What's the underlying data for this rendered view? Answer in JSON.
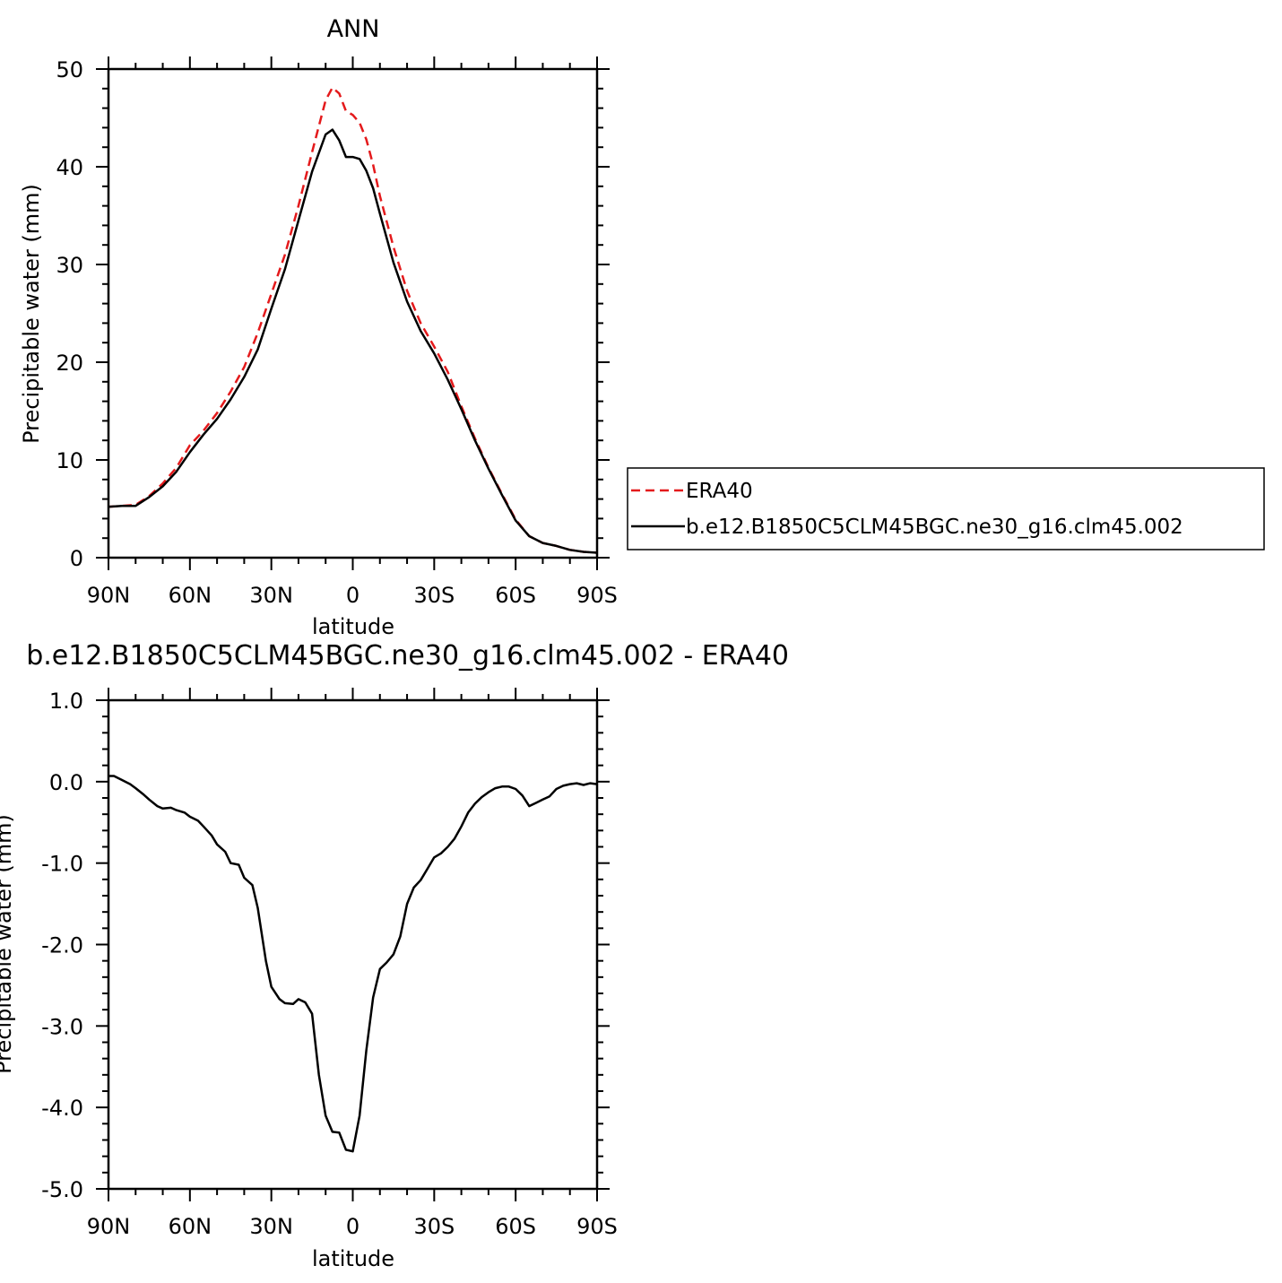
{
  "chart_data": [
    {
      "type": "line",
      "title": "ANN",
      "xlabel": "latitude",
      "ylabel": "Precipitable water (mm)",
      "xlim": [
        -90,
        90
      ],
      "ylim": [
        0,
        50
      ],
      "x_ticks": [
        -90,
        -60,
        -30,
        0,
        30,
        60,
        90
      ],
      "x_tick_labels": [
        "90N",
        "60N",
        "30N",
        "0",
        "30S",
        "60S",
        "90S"
      ],
      "y_ticks": [
        0,
        10,
        20,
        30,
        40,
        50
      ],
      "y_tick_labels": [
        "0",
        "10",
        "20",
        "30",
        "40",
        "50"
      ],
      "legend_position": "right",
      "series": [
        {
          "name": "ERA40",
          "color": "#e41a1c",
          "dash": "dashed",
          "x": [
            -90,
            -85,
            -80,
            -75,
            -70,
            -65,
            -60,
            -55,
            -50,
            -45,
            -40,
            -35,
            -30,
            -25,
            -20,
            -15,
            -10,
            -7.5,
            -5,
            -2.5,
            0,
            2.5,
            5,
            7.5,
            10,
            15,
            20,
            25,
            30,
            35,
            40,
            45,
            50,
            55,
            60,
            65,
            70,
            75,
            80,
            85,
            90
          ],
          "values": [
            5.2,
            5.3,
            5.4,
            6.3,
            7.6,
            9.2,
            11.5,
            13.0,
            14.8,
            17.0,
            19.5,
            23.0,
            27.0,
            31.0,
            36.0,
            41.5,
            46.8,
            48.1,
            47.5,
            45.7,
            45.3,
            44.5,
            42.8,
            40.2,
            37.0,
            31.8,
            27.3,
            24.0,
            21.6,
            19.0,
            15.5,
            12.2,
            9.2,
            6.5,
            3.9,
            2.2,
            1.5,
            1.2,
            0.8,
            0.6,
            0.5
          ]
        },
        {
          "name": "b.e12.B1850C5CLM45BGC.ne30_g16.clm45.002",
          "color": "#000000",
          "dash": "solid",
          "x": [
            -90,
            -85,
            -80,
            -75,
            -70,
            -65,
            -60,
            -55,
            -50,
            -45,
            -40,
            -35,
            -30,
            -25,
            -20,
            -15,
            -10,
            -7.5,
            -5,
            -2.5,
            0,
            2.5,
            5,
            7.5,
            10,
            15,
            20,
            25,
            30,
            35,
            40,
            45,
            50,
            55,
            60,
            65,
            70,
            75,
            80,
            85,
            90
          ],
          "values": [
            5.2,
            5.3,
            5.3,
            6.2,
            7.3,
            8.8,
            10.8,
            12.6,
            14.2,
            16.2,
            18.5,
            21.3,
            25.5,
            29.5,
            34.5,
            39.5,
            43.3,
            43.8,
            42.7,
            41.0,
            41.0,
            40.8,
            39.6,
            37.8,
            35.2,
            30.2,
            26.2,
            23.2,
            20.9,
            18.2,
            15.2,
            12.0,
            9.1,
            6.4,
            3.8,
            2.2,
            1.5,
            1.2,
            0.8,
            0.6,
            0.5
          ]
        }
      ]
    },
    {
      "type": "line",
      "title": "b.e12.B1850C5CLM45BGC.ne30_g16.clm45.002 - ERA40",
      "xlabel": "latitude",
      "ylabel": "Precipitable water (mm)",
      "xlim": [
        -90,
        90
      ],
      "ylim": [
        -5,
        1
      ],
      "x_ticks": [
        -90,
        -60,
        -30,
        0,
        30,
        60,
        90
      ],
      "x_tick_labels": [
        "90N",
        "60N",
        "30N",
        "0",
        "30S",
        "60S",
        "90S"
      ],
      "y_ticks": [
        1,
        0,
        -1,
        -2,
        -3,
        -4,
        -5
      ],
      "y_tick_labels": [
        "1.0",
        "0.0",
        "-1.0",
        "-2.0",
        "-3.0",
        "-4.0",
        "-5.0"
      ],
      "series": [
        {
          "name": "",
          "color": "#000000",
          "dash": "solid",
          "x": [
            -90,
            -88,
            -85,
            -82,
            -80,
            -77,
            -75,
            -72,
            -70,
            -67,
            -65,
            -62,
            -60,
            -57,
            -55,
            -52,
            -50,
            -47,
            -45,
            -42,
            -40,
            -37,
            -35,
            -32,
            -30,
            -27,
            -25,
            -22,
            -20,
            -17.5,
            -15,
            -12.5,
            -10,
            -7.5,
            -5,
            -2.5,
            0,
            2.5,
            5,
            7.5,
            10,
            12.5,
            15,
            17.5,
            20,
            22.5,
            25,
            27.5,
            30,
            32.5,
            35,
            37.5,
            40,
            42.5,
            45,
            47.5,
            50,
            52.5,
            55,
            57.5,
            60,
            62.5,
            65,
            67.5,
            70,
            72.5,
            75,
            77.5,
            80,
            82.5,
            85,
            87.5,
            90
          ],
          "values": [
            0.07,
            0.07,
            0.02,
            -0.03,
            -0.08,
            -0.16,
            -0.22,
            -0.3,
            -0.33,
            -0.32,
            -0.35,
            -0.38,
            -0.43,
            -0.48,
            -0.55,
            -0.66,
            -0.77,
            -0.86,
            -1.0,
            -1.02,
            -1.18,
            -1.27,
            -1.55,
            -2.2,
            -2.52,
            -2.67,
            -2.72,
            -2.73,
            -2.67,
            -2.71,
            -2.85,
            -3.6,
            -4.1,
            -4.3,
            -4.31,
            -4.52,
            -4.54,
            -4.1,
            -3.3,
            -2.65,
            -2.3,
            -2.22,
            -2.12,
            -1.9,
            -1.5,
            -1.3,
            -1.21,
            -1.07,
            -0.93,
            -0.88,
            -0.8,
            -0.7,
            -0.55,
            -0.38,
            -0.27,
            -0.19,
            -0.13,
            -0.08,
            -0.06,
            -0.06,
            -0.09,
            -0.17,
            -0.3,
            -0.26,
            -0.22,
            -0.18,
            -0.09,
            -0.05,
            -0.03,
            -0.02,
            -0.04,
            -0.02,
            -0.03
          ]
        }
      ]
    }
  ]
}
